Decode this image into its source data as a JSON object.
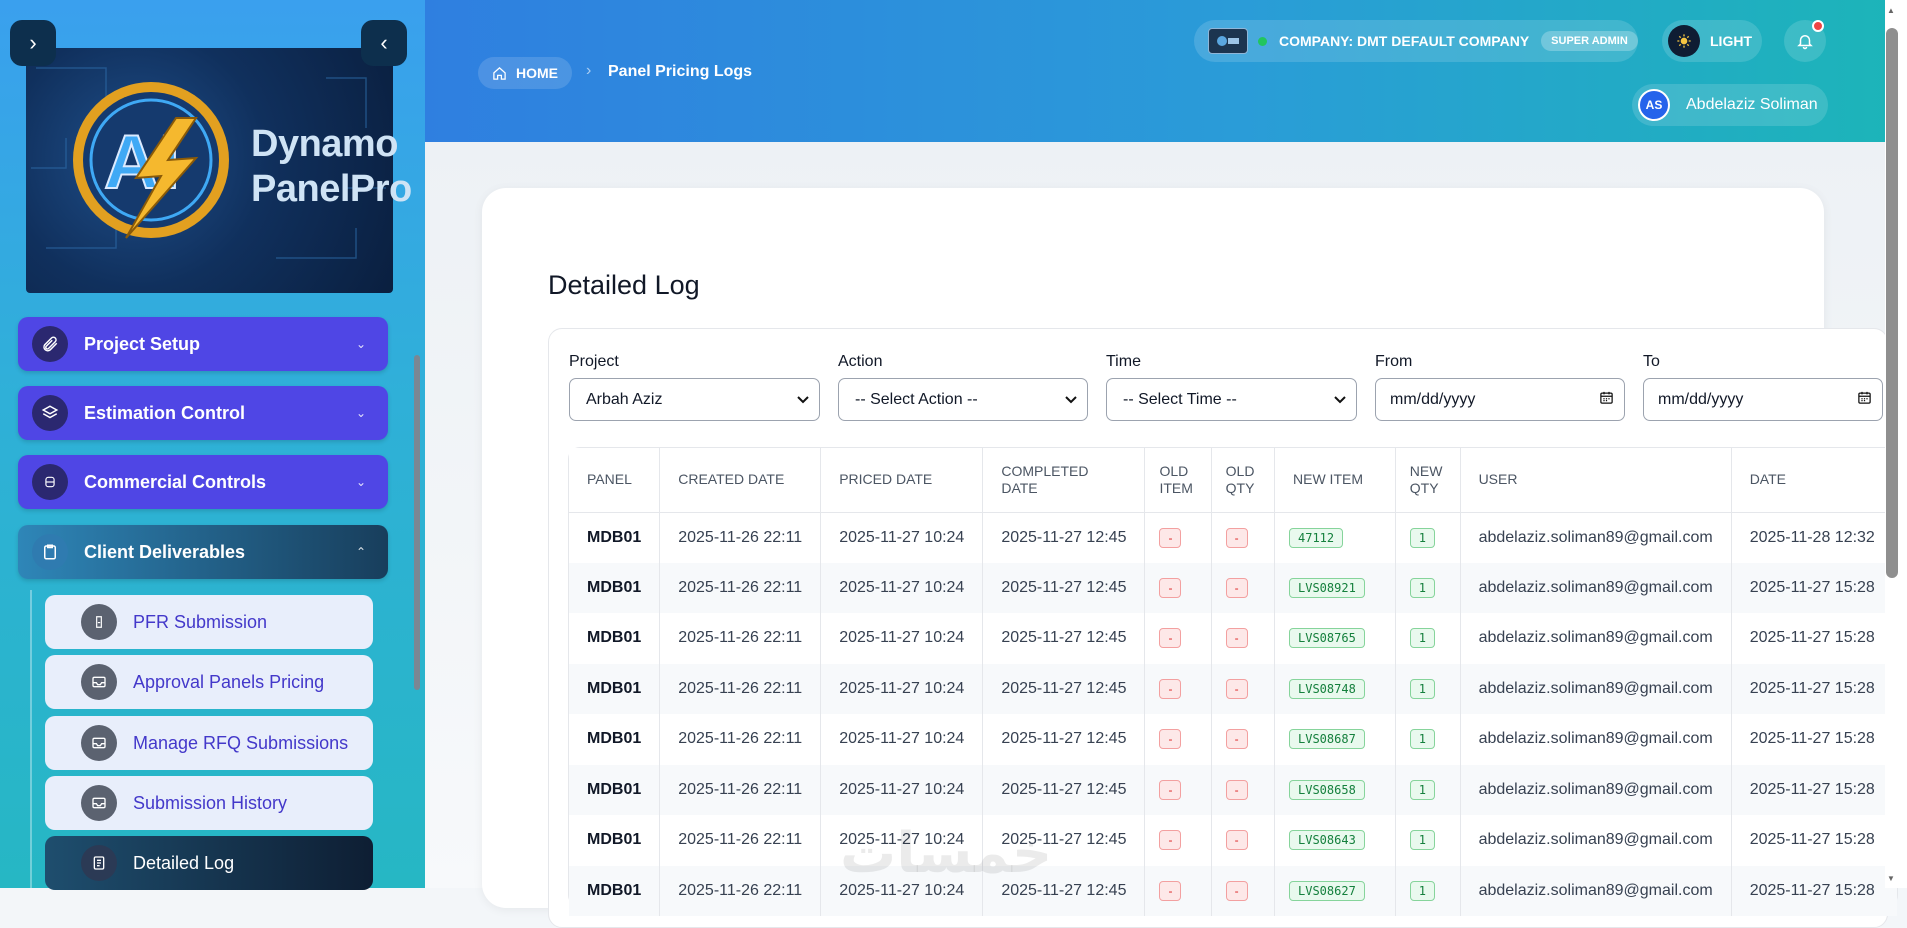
{
  "brand": {
    "logo_line1": "Dynamo",
    "logo_line2": "PanelPro"
  },
  "sidebar": {
    "menu": [
      {
        "label": "Project Setup",
        "icon": "paperclip-icon"
      },
      {
        "label": "Estimation Control",
        "icon": "layers-icon"
      },
      {
        "label": "Commercial Controls",
        "icon": "database-icon"
      },
      {
        "label": "Client Deliverables",
        "icon": "clipboard-icon"
      }
    ],
    "sub_items": [
      {
        "label": "PFR Submission",
        "icon": "file-icon"
      },
      {
        "label": "Approval Panels Pricing",
        "icon": "inbox-icon"
      },
      {
        "label": "Manage RFQ Submissions",
        "icon": "inbox-icon"
      },
      {
        "label": "Submission History",
        "icon": "inbox-icon"
      },
      {
        "label": "Detailed Log",
        "icon": "document-icon"
      }
    ]
  },
  "header": {
    "breadcrumb_home": "HOME",
    "breadcrumb_current": "Panel Pricing Logs",
    "company": "COMPANY: DMT DEFAULT COMPANY",
    "role": "SUPER ADMIN",
    "theme": "LIGHT",
    "user_initials": "AS",
    "user_name": "Abdelaziz Soliman"
  },
  "main": {
    "title": "Detailed Log",
    "filters": {
      "project_label": "Project",
      "project_value": "Arbah Aziz",
      "action_label": "Action",
      "action_value": "-- Select Action --",
      "time_label": "Time",
      "time_value": "-- Select Time --",
      "from_label": "From",
      "from_value": "mm/dd/yyyy",
      "to_label": "To",
      "to_value": "mm/dd/yyyy"
    },
    "table": {
      "headers": [
        "PANEL",
        "CREATED DATE",
        "PRICED DATE",
        "COMPLETED DATE",
        "OLD ITEM",
        "OLD QTY",
        "NEW ITEM",
        "NEW QTY",
        "USER",
        "DATE"
      ],
      "rows": [
        [
          "MDB01",
          "2025-11-26 22:11",
          "2025-11-27 10:24",
          "2025-11-27 12:45",
          "-",
          "-",
          "47112",
          "1",
          "abdelaziz.soliman89@gmail.com",
          "2025-11-28 12:32"
        ],
        [
          "MDB01",
          "2025-11-26 22:11",
          "2025-11-27 10:24",
          "2025-11-27 12:45",
          "-",
          "-",
          "LVS08921",
          "1",
          "abdelaziz.soliman89@gmail.com",
          "2025-11-27 15:28"
        ],
        [
          "MDB01",
          "2025-11-26 22:11",
          "2025-11-27 10:24",
          "2025-11-27 12:45",
          "-",
          "-",
          "LVS08765",
          "1",
          "abdelaziz.soliman89@gmail.com",
          "2025-11-27 15:28"
        ],
        [
          "MDB01",
          "2025-11-26 22:11",
          "2025-11-27 10:24",
          "2025-11-27 12:45",
          "-",
          "-",
          "LVS08748",
          "1",
          "abdelaziz.soliman89@gmail.com",
          "2025-11-27 15:28"
        ],
        [
          "MDB01",
          "2025-11-26 22:11",
          "2025-11-27 10:24",
          "2025-11-27 12:45",
          "-",
          "-",
          "LVS08687",
          "1",
          "abdelaziz.soliman89@gmail.com",
          "2025-11-27 15:28"
        ],
        [
          "MDB01",
          "2025-11-26 22:11",
          "2025-11-27 10:24",
          "2025-11-27 12:45",
          "-",
          "-",
          "LVS08658",
          "1",
          "abdelaziz.soliman89@gmail.com",
          "2025-11-27 15:28"
        ],
        [
          "MDB01",
          "2025-11-26 22:11",
          "2025-11-27 10:24",
          "2025-11-27 12:45",
          "-",
          "-",
          "LVS08643",
          "1",
          "abdelaziz.soliman89@gmail.com",
          "2025-11-27 15:28"
        ],
        [
          "MDB01",
          "2025-11-26 22:11",
          "2025-11-27 10:24",
          "2025-11-27 12:45",
          "-",
          "-",
          "LVS08627",
          "1",
          "abdelaziz.soliman89@gmail.com",
          "2025-11-27 15:28"
        ]
      ]
    }
  },
  "colors": {
    "menu_bg": "#4f46e5",
    "accent_red": "#dc2626",
    "accent_green": "#15803d"
  }
}
